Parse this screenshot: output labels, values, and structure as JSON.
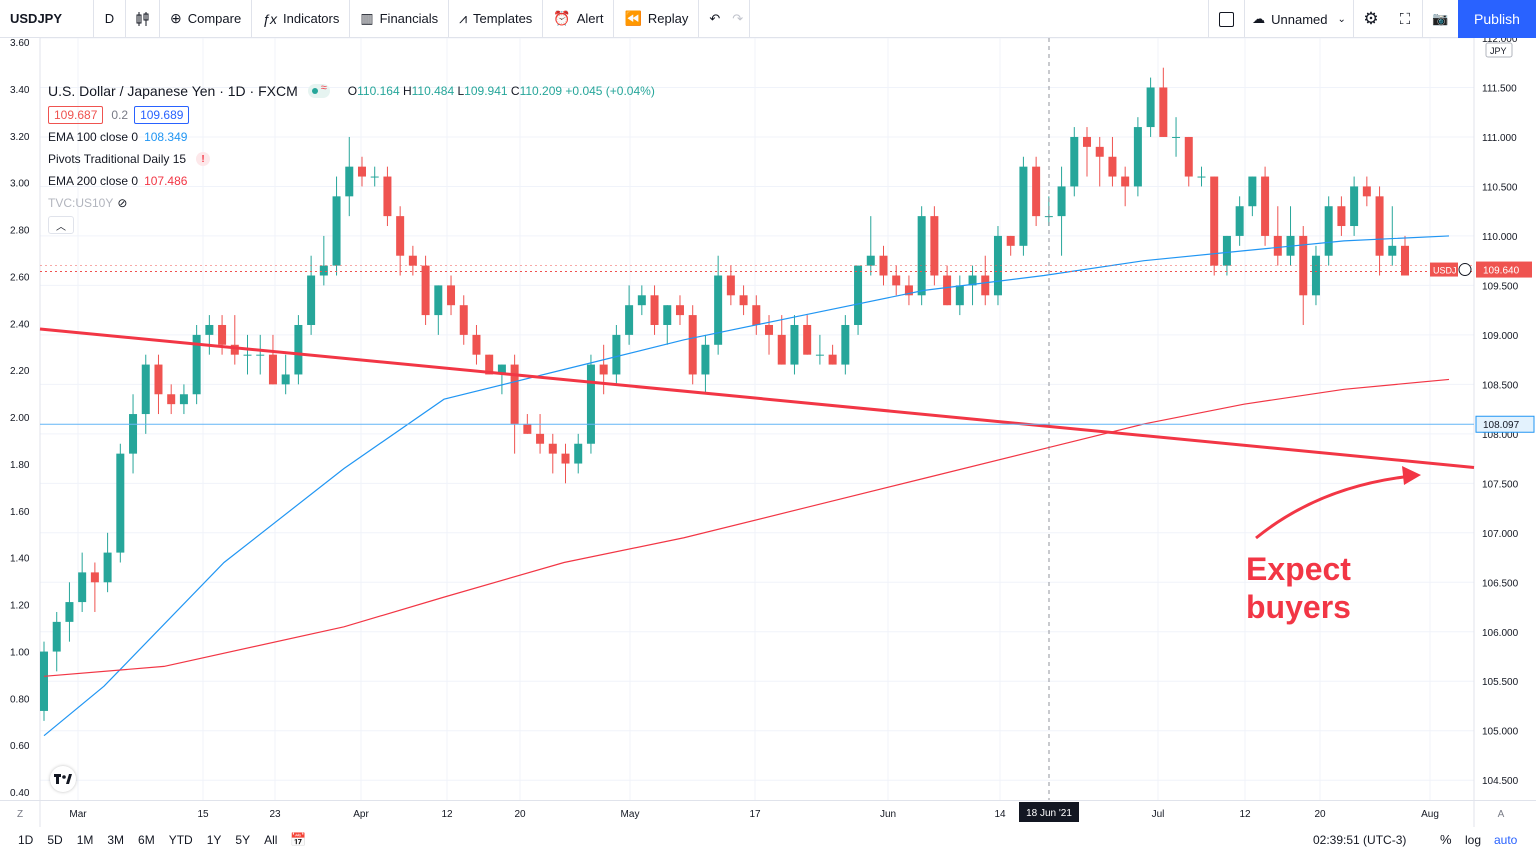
{
  "toolbar": {
    "symbol": "USDJPY",
    "interval": "D",
    "compare": "Compare",
    "indicators": "Indicators",
    "financials": "Financials",
    "templates": "Templates",
    "alert": "Alert",
    "replay": "Replay",
    "layout_name": "Unnamed",
    "publish": "Publish"
  },
  "legend": {
    "title": "U.S. Dollar / Japanese Yen · 1D · FXCM",
    "ohlc": {
      "o_label": "O",
      "o": "110.164",
      "h_label": "H",
      "h": "110.484",
      "l_label": "L",
      "l": "109.941",
      "c_label": "C",
      "c": "110.209",
      "change": "+0.045 (+0.04%)"
    },
    "bid": "109.687",
    "spread": "0.2",
    "ask": "109.689",
    "indicators": [
      {
        "name": "EMA 100 close 0",
        "value": "108.349",
        "color": "#2196f3"
      },
      {
        "name": "Pivots Traditional Daily 15",
        "value": "",
        "color": "#f23645"
      },
      {
        "name": "EMA 200 close 0",
        "value": "107.486",
        "color": "#f23645"
      },
      {
        "name": "TVC:US10Y",
        "value": "",
        "color": "#b2b5be"
      }
    ],
    "warn_icon": "!"
  },
  "annotation": {
    "line1": "Expect",
    "line2": "buyers"
  },
  "bottom": {
    "ranges": [
      "1D",
      "5D",
      "1M",
      "3M",
      "6M",
      "YTD",
      "1Y",
      "5Y",
      "All"
    ],
    "clock": "02:39:51 (UTC-3)",
    "percent": "%",
    "log": "log",
    "auto": "auto"
  },
  "chart_data": {
    "type": "candlestick",
    "symbol": "USDJPY",
    "timeframe": "1D",
    "currency": "JPY",
    "left_axis_ticks": [
      "3.60",
      "3.40",
      "3.20",
      "3.00",
      "2.80",
      "2.60",
      "2.40",
      "2.20",
      "2.00",
      "1.80",
      "1.60",
      "1.40",
      "1.20",
      "1.00",
      "0.80",
      "0.60",
      "0.40"
    ],
    "right_axis_ticks": [
      "112.000",
      "111.500",
      "111.000",
      "110.500",
      "110.000",
      "109.500",
      "109.000",
      "108.500",
      "108.000",
      "107.500",
      "107.000",
      "106.500",
      "106.000",
      "105.500",
      "105.000",
      "104.500"
    ],
    "right_ylim": [
      104.3,
      112.0
    ],
    "time_labels": [
      "Mar",
      "15",
      "23",
      "Apr",
      "12",
      "20",
      "May",
      "17",
      "Jun",
      "14",
      "Jul",
      "12",
      "20",
      "Aug"
    ],
    "crosshair_date": "18 Jun '21",
    "last_price": "109.640",
    "last_price_tag": "USDJ",
    "hline_price": "108.097",
    "candles": [
      [
        105.2,
        105.9,
        105.1,
        105.8
      ],
      [
        105.8,
        106.2,
        105.6,
        106.1
      ],
      [
        106.1,
        106.5,
        105.9,
        106.3
      ],
      [
        106.3,
        106.8,
        106.2,
        106.6
      ],
      [
        106.6,
        106.7,
        106.2,
        106.5
      ],
      [
        106.5,
        107.0,
        106.4,
        106.8
      ],
      [
        106.8,
        107.9,
        106.7,
        107.8
      ],
      [
        107.8,
        108.4,
        107.6,
        108.2
      ],
      [
        108.2,
        108.8,
        108.0,
        108.7
      ],
      [
        108.7,
        108.8,
        108.2,
        108.4
      ],
      [
        108.4,
        108.5,
        108.2,
        108.3
      ],
      [
        108.3,
        108.5,
        108.2,
        108.4
      ],
      [
        108.4,
        109.1,
        108.3,
        109.0
      ],
      [
        109.0,
        109.2,
        108.8,
        109.1
      ],
      [
        109.1,
        109.2,
        108.8,
        108.9
      ],
      [
        108.9,
        109.2,
        108.7,
        108.8
      ],
      [
        108.8,
        109.0,
        108.6,
        108.8
      ],
      [
        108.8,
        109.0,
        108.6,
        108.8
      ],
      [
        108.8,
        109.0,
        108.5,
        108.5
      ],
      [
        108.5,
        108.8,
        108.4,
        108.6
      ],
      [
        108.6,
        109.2,
        108.5,
        109.1
      ],
      [
        109.1,
        109.8,
        109.0,
        109.6
      ],
      [
        109.6,
        110.0,
        109.5,
        109.7
      ],
      [
        109.7,
        110.6,
        109.6,
        110.4
      ],
      [
        110.4,
        111.0,
        110.2,
        110.7
      ],
      [
        110.7,
        110.8,
        110.5,
        110.6
      ],
      [
        110.6,
        110.7,
        110.5,
        110.6
      ],
      [
        110.6,
        110.7,
        110.1,
        110.2
      ],
      [
        110.2,
        110.3,
        109.6,
        109.8
      ],
      [
        109.8,
        109.9,
        109.6,
        109.7
      ],
      [
        109.7,
        109.8,
        109.1,
        109.2
      ],
      [
        109.2,
        109.5,
        109.0,
        109.5
      ],
      [
        109.5,
        109.6,
        109.2,
        109.3
      ],
      [
        109.3,
        109.4,
        108.9,
        109.0
      ],
      [
        109.0,
        109.1,
        108.7,
        108.8
      ],
      [
        108.8,
        108.8,
        108.6,
        108.6
      ],
      [
        108.6,
        108.7,
        108.4,
        108.7
      ],
      [
        108.7,
        108.8,
        107.8,
        108.1
      ],
      [
        108.1,
        108.2,
        108.0,
        108.0
      ],
      [
        108.0,
        108.2,
        107.8,
        107.9
      ],
      [
        107.9,
        108.0,
        107.6,
        107.8
      ],
      [
        107.8,
        107.9,
        107.5,
        107.7
      ],
      [
        107.7,
        108.0,
        107.6,
        107.9
      ],
      [
        107.9,
        108.8,
        107.8,
        108.7
      ],
      [
        108.7,
        108.9,
        108.4,
        108.6
      ],
      [
        108.6,
        109.1,
        108.5,
        109.0
      ],
      [
        109.0,
        109.5,
        108.9,
        109.3
      ],
      [
        109.3,
        109.5,
        109.2,
        109.4
      ],
      [
        109.4,
        109.5,
        109.0,
        109.1
      ],
      [
        109.1,
        109.3,
        108.9,
        109.3
      ],
      [
        109.3,
        109.4,
        109.1,
        109.2
      ],
      [
        109.2,
        109.3,
        108.5,
        108.6
      ],
      [
        108.6,
        109.0,
        108.4,
        108.9
      ],
      [
        108.9,
        109.8,
        108.8,
        109.6
      ],
      [
        109.6,
        109.7,
        109.3,
        109.4
      ],
      [
        109.4,
        109.5,
        109.2,
        109.3
      ],
      [
        109.3,
        109.4,
        109.0,
        109.1
      ],
      [
        109.1,
        109.2,
        108.8,
        109.0
      ],
      [
        109.0,
        109.2,
        108.7,
        108.7
      ],
      [
        108.7,
        109.2,
        108.6,
        109.1
      ],
      [
        109.1,
        109.2,
        108.8,
        108.8
      ],
      [
        108.8,
        109.0,
        108.7,
        108.8
      ],
      [
        108.8,
        108.9,
        108.7,
        108.7
      ],
      [
        108.7,
        109.2,
        108.6,
        109.1
      ],
      [
        109.1,
        109.7,
        109.0,
        109.7
      ],
      [
        109.7,
        110.2,
        109.6,
        109.8
      ],
      [
        109.8,
        109.9,
        109.5,
        109.6
      ],
      [
        109.6,
        109.7,
        109.4,
        109.5
      ],
      [
        109.5,
        109.6,
        109.3,
        109.4
      ],
      [
        109.4,
        110.3,
        109.3,
        110.2
      ],
      [
        110.2,
        110.3,
        109.5,
        109.6
      ],
      [
        109.6,
        109.7,
        109.3,
        109.3
      ],
      [
        109.3,
        109.6,
        109.2,
        109.5
      ],
      [
        109.5,
        109.7,
        109.3,
        109.6
      ],
      [
        109.6,
        109.8,
        109.3,
        109.4
      ],
      [
        109.4,
        110.1,
        109.3,
        110.0
      ],
      [
        110.0,
        110.0,
        109.8,
        109.9
      ],
      [
        109.9,
        110.8,
        109.8,
        110.7
      ],
      [
        110.7,
        110.8,
        110.1,
        110.2
      ],
      [
        110.2,
        110.4,
        110.1,
        110.2
      ],
      [
        110.2,
        110.7,
        109.8,
        110.5
      ],
      [
        110.5,
        111.1,
        110.4,
        111.0
      ],
      [
        111.0,
        111.1,
        110.6,
        110.9
      ],
      [
        110.9,
        111.0,
        110.5,
        110.8
      ],
      [
        110.8,
        111.0,
        110.5,
        110.6
      ],
      [
        110.6,
        110.7,
        110.3,
        110.5
      ],
      [
        110.5,
        111.2,
        110.4,
        111.1
      ],
      [
        111.1,
        111.6,
        111.0,
        111.5
      ],
      [
        111.5,
        111.7,
        111.0,
        111.0
      ],
      [
        111.0,
        111.2,
        110.8,
        111.0
      ],
      [
        111.0,
        111.0,
        110.5,
        110.6
      ],
      [
        110.6,
        110.7,
        110.5,
        110.6
      ],
      [
        110.6,
        110.6,
        109.6,
        109.7
      ],
      [
        109.7,
        110.0,
        109.6,
        110.0
      ],
      [
        110.0,
        110.4,
        109.9,
        110.3
      ],
      [
        110.3,
        110.6,
        110.2,
        110.6
      ],
      [
        110.6,
        110.7,
        109.9,
        110.0
      ],
      [
        110.0,
        110.3,
        109.7,
        109.8
      ],
      [
        109.8,
        110.3,
        109.7,
        110.0
      ],
      [
        110.0,
        110.1,
        109.1,
        109.4
      ],
      [
        109.4,
        109.9,
        109.3,
        109.8
      ],
      [
        109.8,
        110.4,
        109.7,
        110.3
      ],
      [
        110.3,
        110.4,
        110.0,
        110.1
      ],
      [
        110.1,
        110.6,
        110.0,
        110.5
      ],
      [
        110.5,
        110.6,
        110.3,
        110.4
      ],
      [
        110.4,
        110.5,
        109.6,
        109.8
      ],
      [
        109.8,
        110.3,
        109.7,
        109.9
      ],
      [
        109.9,
        110.0,
        109.6,
        109.6
      ]
    ],
    "ema100": [
      [
        0,
        104.95
      ],
      [
        60,
        105.45
      ],
      [
        180,
        106.7
      ],
      [
        300,
        107.65
      ],
      [
        400,
        108.35
      ],
      [
        520,
        108.65
      ],
      [
        640,
        108.95
      ],
      [
        760,
        109.2
      ],
      [
        880,
        109.45
      ],
      [
        1000,
        109.6
      ],
      [
        1100,
        109.75
      ],
      [
        1200,
        109.85
      ],
      [
        1300,
        109.95
      ],
      [
        1405,
        110.0
      ]
    ],
    "ema200": [
      [
        0,
        105.55
      ],
      [
        120,
        105.65
      ],
      [
        300,
        106.05
      ],
      [
        400,
        106.35
      ],
      [
        520,
        106.7
      ],
      [
        640,
        106.95
      ],
      [
        760,
        107.25
      ],
      [
        880,
        107.55
      ],
      [
        1000,
        107.85
      ],
      [
        1100,
        108.1
      ],
      [
        1200,
        108.3
      ],
      [
        1300,
        108.45
      ],
      [
        1405,
        108.55
      ]
    ],
    "trendline": [
      [
        0,
        109.06
      ],
      [
        1434,
        107.66
      ]
    ]
  }
}
